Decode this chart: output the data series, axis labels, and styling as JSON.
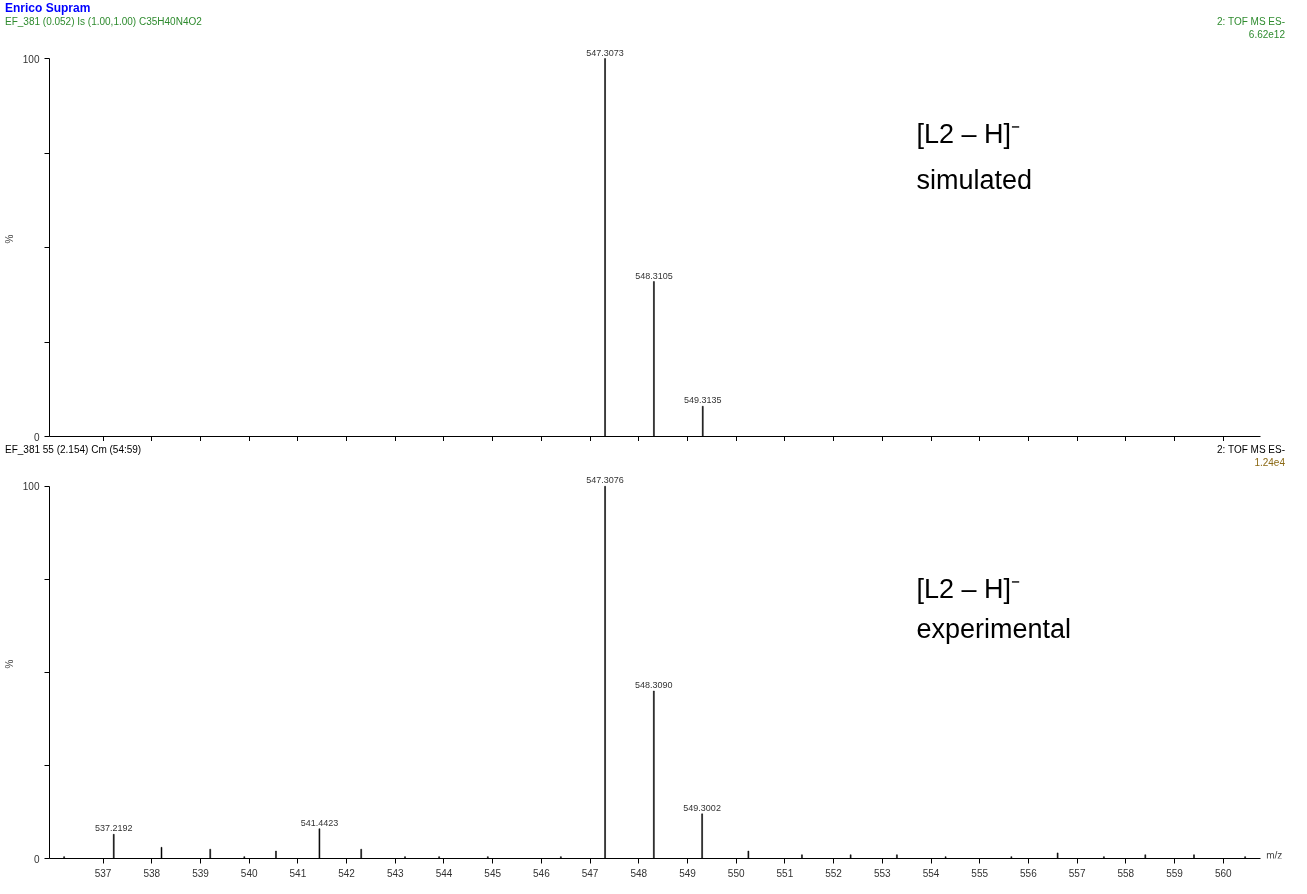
{
  "chart_data": [
    {
      "type": "bar",
      "title": "Enrico Supram",
      "subtitle": "EF_381  (0.052) Is (1.00,1.00) C35H40N4O2",
      "ylabel": "%",
      "annotations": [
        "2: TOF MS ES-",
        "6.62e12",
        "[L2 – H]⁻",
        "simulated",
        {
          "text": "547.3073",
          "x": 547.3073,
          "y": 100
        },
        {
          "text": "548.3105",
          "x": 548.3105,
          "y": 41
        },
        {
          "text": "549.3135",
          "x": 549.3135,
          "y": 8
        }
      ],
      "x": [
        547.3073,
        548.3105,
        549.3135
      ],
      "values": [
        100,
        41,
        8
      ],
      "color": "#000000",
      "xlim": [
        535.9,
        560.76
      ],
      "ylim": [
        0,
        100
      ],
      "xticks": [
        537,
        538,
        539,
        540,
        541,
        542,
        543,
        544,
        545,
        546,
        547,
        548,
        549,
        550,
        551,
        552,
        553,
        554,
        555,
        556,
        557,
        558,
        559,
        560
      ],
      "yticks": [
        0,
        {
          "value": 25,
          "label": null
        },
        {
          "value": 50,
          "label": null
        },
        {
          "value": 75,
          "label": null
        },
        100
      ],
      "tick_labels": "y"
    },
    {
      "type": "bar",
      "title": "EF_381 55 (2.154) Cm (54:59)",
      "ylabel": "%",
      "xlabel": "m/z",
      "annotations": [
        "2: TOF MS ES-",
        "1.24e4",
        "[L2 – H]⁻",
        "experimental",
        {
          "text": "537.2192",
          "x": 537.2192,
          "y": 6.5
        },
        {
          "text": "541.4423",
          "x": 541.4423,
          "y": 8
        },
        {
          "text": "547.3076",
          "x": 547.3076,
          "y": 100
        },
        {
          "text": "548.3090",
          "x": 548.309,
          "y": 45
        },
        {
          "text": "549.3002",
          "x": 549.3002,
          "y": 12
        }
      ],
      "x": [
        536.2,
        537.2192,
        538.2,
        539.2,
        539.9,
        540.55,
        541.4423,
        542.3,
        543.2,
        543.9,
        544.9,
        546.4,
        547.3076,
        548.309,
        549.3002,
        550.25,
        551.35,
        552.35,
        553.3,
        554.3,
        555.65,
        556.6,
        557.55,
        558.4,
        559.4,
        560.45
      ],
      "values": [
        0.5,
        6.5,
        3,
        2.5,
        0.5,
        2,
        8,
        2.5,
        0.5,
        0.5,
        0.5,
        0.5,
        100,
        45,
        12,
        2,
        1,
        1,
        1,
        0.5,
        0.5,
        1.5,
        0.5,
        1,
        1,
        0.5
      ],
      "color": "#000000",
      "xlim": [
        535.9,
        560.76
      ],
      "ylim": [
        0,
        100
      ],
      "xticks": [
        537,
        538,
        539,
        540,
        541,
        542,
        543,
        544,
        545,
        546,
        547,
        548,
        549,
        550,
        551,
        552,
        553,
        554,
        555,
        556,
        557,
        558,
        559,
        560
      ],
      "yticks": [
        0,
        {
          "value": 25,
          "label": null
        },
        {
          "value": 50,
          "label": null
        },
        {
          "value": 75,
          "label": null
        },
        100
      ]
    }
  ]
}
